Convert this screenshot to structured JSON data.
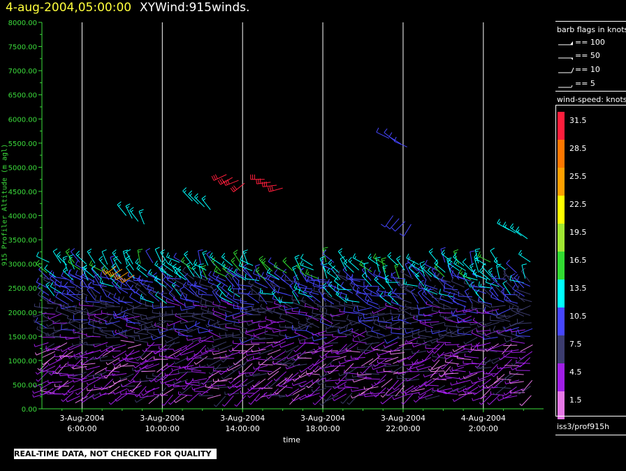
{
  "header": {
    "date_title": "4-aug-2004,05:00:00",
    "plot_title": "XYWind:915winds."
  },
  "footer": {
    "disclaimer": "REAL-TIME DATA, NOT CHECKED FOR QUALITY",
    "source": "iss3/prof915h"
  },
  "legend": {
    "flags_title": "barb flags in knots",
    "flags": [
      {
        "label": "== 100",
        "kind": "flag100"
      },
      {
        "label": "== 50",
        "kind": "flag50"
      },
      {
        "label": "== 10",
        "kind": "barb10"
      },
      {
        "label": "== 5",
        "kind": "barb5"
      }
    ],
    "colorbar_title": "wind-speed: knots",
    "colorbar": [
      {
        "label": "31.5",
        "color": "#ff1e3c"
      },
      {
        "label": "28.5",
        "color": "#ff7800"
      },
      {
        "label": "25.5",
        "color": "#ffa000"
      },
      {
        "label": "22.5",
        "color": "#ffff00"
      },
      {
        "label": "19.5",
        "color": "#a0e632"
      },
      {
        "label": "16.5",
        "color": "#32dc32"
      },
      {
        "label": "13.5",
        "color": "#00ffff"
      },
      {
        "label": "10.5",
        "color": "#4646ff"
      },
      {
        "label": "7.5",
        "color": "#3c3c6e"
      },
      {
        "label": "4.5",
        "color": "#a01ee6"
      },
      {
        "label": "1.5",
        "color": "#e678e6"
      }
    ]
  },
  "chart_data": {
    "type": "scatter",
    "subtype": "wind-barb time-height",
    "title": "XYWind:915winds.",
    "xlabel": "time",
    "ylabel": "915 Profiler Altitude (m agl)",
    "ylim": [
      0,
      8000
    ],
    "xlim_hours": [
      4.0,
      29.0
    ],
    "yticks": [
      "8000.00",
      "7500.00",
      "7000.00",
      "6500.00",
      "6000.00",
      "5500.00",
      "5000.00",
      "4500.00",
      "4000.00",
      "3500.00",
      "3000.00",
      "2500.00",
      "2000.00",
      "1500.00",
      "1000.00",
      "500.00",
      "0.00"
    ],
    "xticks": [
      {
        "line1": "3-Aug-2004",
        "line2": "6:00:00",
        "hour": 6
      },
      {
        "line1": "3-Aug-2004",
        "line2": "10:00:00",
        "hour": 10
      },
      {
        "line1": "3-Aug-2004",
        "line2": "14:00:00",
        "hour": 14
      },
      {
        "line1": "3-Aug-2004",
        "line2": "18:00:00",
        "hour": 18
      },
      {
        "line1": "3-Aug-2004",
        "line2": "22:00:00",
        "hour": 22
      },
      {
        "line1": "4-Aug-2004",
        "line2": "2:00:00",
        "hour": 26
      }
    ],
    "grid": "vertical lines at major x ticks",
    "colors": {
      "axis": "#3cdc3c",
      "grid": "#ffffff"
    },
    "barb_layers": [
      {
        "from": 300,
        "to": 1500,
        "speed": 4.5,
        "dir": 250
      },
      {
        "from": 1500,
        "to": 2200,
        "speed": 7.5,
        "dir": 270
      },
      {
        "from": 2200,
        "to": 2700,
        "speed": 10.5,
        "dir": 300
      },
      {
        "from": 2700,
        "to": 3100,
        "speed": 13.5,
        "dir": 320
      }
    ],
    "upper_barbs": [
      {
        "hour": 8.2,
        "alt": 4000,
        "speed": 13.5,
        "dir": 330
      },
      {
        "hour": 11.5,
        "alt": 4300,
        "speed": 13.5,
        "dir": 320
      },
      {
        "hour": 13.2,
        "alt": 4850,
        "speed": 31.5,
        "dir": 240
      },
      {
        "hour": 15.1,
        "alt": 4750,
        "speed": 31.5,
        "dir": 260
      },
      {
        "hour": 21.3,
        "alt": 5600,
        "speed": 10.5,
        "dir": 300
      },
      {
        "hour": 21.5,
        "alt": 4000,
        "speed": 10.5,
        "dir": 220
      },
      {
        "hour": 27.3,
        "alt": 3700,
        "speed": 13.5,
        "dir": 300
      },
      {
        "hour": 7.7,
        "alt": 2950,
        "speed": 25.5,
        "dir": 230
      }
    ]
  }
}
